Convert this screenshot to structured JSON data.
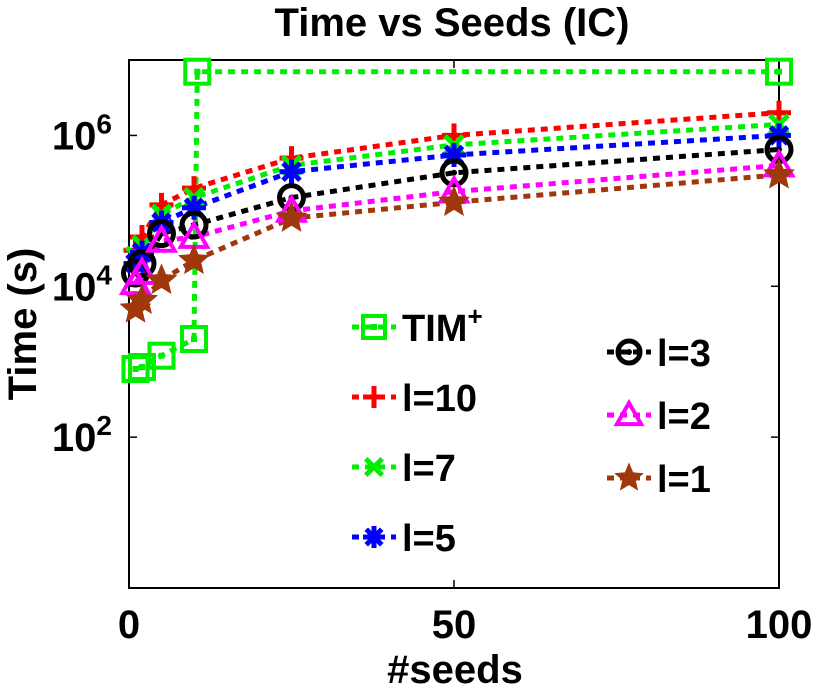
{
  "chart_data": {
    "type": "line",
    "title": "Time vs Seeds (IC)",
    "xlabel": "#seeds",
    "ylabel": "Time (s)",
    "x": [
      1,
      2,
      5,
      10,
      25,
      50,
      100
    ],
    "xlim": [
      0,
      100
    ],
    "ylim_log10": [
      0,
      7
    ],
    "yscale": "log",
    "xticks": [
      0,
      50,
      100
    ],
    "xtick_labels": [
      "0",
      "50",
      "100"
    ],
    "yticks_log10": [
      2,
      4,
      6
    ],
    "ytick_labels": [
      {
        "base": "10",
        "exp": "2"
      },
      {
        "base": "10",
        "exp": "4"
      },
      {
        "base": "10",
        "exp": "6"
      }
    ],
    "series": [
      {
        "name": "TIM⁺",
        "name_base": "TIM",
        "name_sup": "+",
        "color": "#00ee00",
        "marker": "square",
        "x": [
          1,
          2,
          5,
          10,
          10.5,
          100
        ],
        "values": [
          800,
          850,
          1200,
          2000,
          7000000,
          7000000
        ]
      },
      {
        "name": "l=10",
        "color": "#ff0000",
        "marker": "plus",
        "x": [
          1,
          2,
          5,
          10,
          25,
          50,
          100
        ],
        "values": [
          30000,
          45000,
          120000,
          200000,
          500000,
          1000000,
          2000000
        ]
      },
      {
        "name": "l=7",
        "color": "#00ee00",
        "marker": "x",
        "x": [
          1,
          2,
          5,
          10,
          25,
          50,
          100
        ],
        "values": [
          25000,
          35000,
          90000,
          150000,
          400000,
          750000,
          1400000
        ]
      },
      {
        "name": "l=5",
        "color": "#0000ff",
        "marker": "asterisk",
        "x": [
          1,
          2,
          5,
          10,
          25,
          50,
          100
        ],
        "values": [
          20000,
          28000,
          70000,
          110000,
          330000,
          550000,
          1000000
        ]
      },
      {
        "name": "l=3",
        "color": "#000000",
        "marker": "circle",
        "x": [
          1,
          2,
          5,
          10,
          25,
          50,
          100
        ],
        "values": [
          15000,
          20000,
          50000,
          65000,
          150000,
          320000,
          650000
        ]
      },
      {
        "name": "l=2",
        "color": "#ff00ff",
        "marker": "triangle",
        "x": [
          1,
          2,
          5,
          10,
          25,
          50,
          100
        ],
        "values": [
          11000,
          15000,
          40000,
          45000,
          100000,
          180000,
          400000
        ]
      },
      {
        "name": "l=1",
        "color": "#a0380c",
        "marker": "star",
        "x": [
          1,
          2,
          5,
          10,
          25,
          50,
          100
        ],
        "values": [
          5000,
          6500,
          12000,
          22000,
          80000,
          130000,
          300000
        ]
      }
    ],
    "legend_left_order": [
      "TIM⁺",
      "l=10",
      "l=7",
      "l=5"
    ],
    "legend_right_order": [
      "l=3",
      "l=2",
      "l=1"
    ]
  }
}
